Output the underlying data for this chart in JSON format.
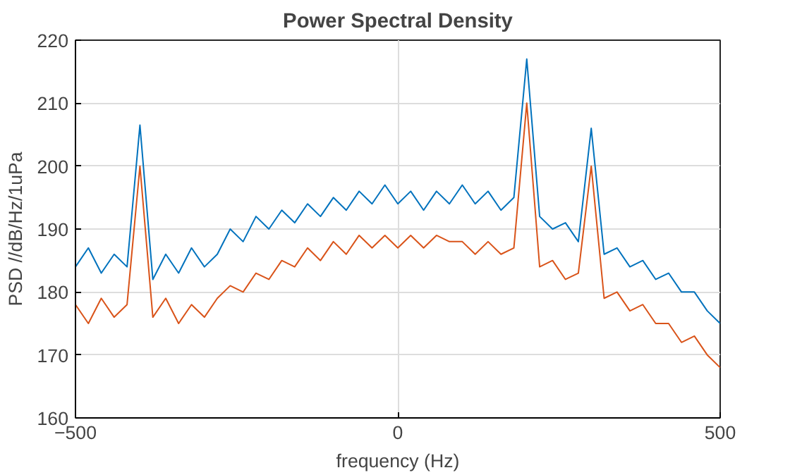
{
  "chart_data": {
    "type": "line",
    "title": "Power Spectral Density",
    "xlabel": "frequency (Hz)",
    "ylabel": "PSD //dB/Hz/1uPa",
    "x": [
      -500,
      -480,
      -460,
      -440,
      -420,
      -400,
      -380,
      -360,
      -340,
      -320,
      -300,
      -280,
      -260,
      -240,
      -220,
      -200,
      -180,
      -160,
      -140,
      -120,
      -100,
      -80,
      -60,
      -40,
      -20,
      0,
      20,
      40,
      60,
      80,
      100,
      120,
      140,
      160,
      180,
      200,
      220,
      240,
      260,
      280,
      300,
      320,
      340,
      360,
      380,
      400,
      420,
      440,
      460,
      480,
      500
    ],
    "series": [
      {
        "color": "#0072bd",
        "values": [
          184,
          187,
          183,
          186,
          184,
          206.5,
          182,
          186,
          183,
          187,
          184,
          186,
          190,
          188,
          192,
          190,
          193,
          191,
          194,
          192,
          195,
          193,
          196,
          194,
          197,
          194,
          196,
          193,
          196,
          194,
          197,
          194,
          196,
          193,
          195,
          217,
          192,
          190,
          191,
          188,
          206,
          186,
          187,
          184,
          185,
          182,
          183,
          180,
          180,
          177,
          175
        ]
      },
      {
        "color": "#d95319",
        "values": [
          178,
          175,
          179,
          176,
          178,
          200,
          176,
          179,
          175,
          178,
          176,
          179,
          181,
          180,
          183,
          182,
          185,
          184,
          187,
          185,
          188,
          186,
          189,
          187,
          189,
          187,
          189,
          187,
          189,
          188,
          188,
          186,
          188,
          186,
          187,
          210,
          184,
          185,
          182,
          183,
          200,
          179,
          180,
          177,
          178,
          175,
          175,
          172,
          173,
          170,
          168
        ]
      }
    ],
    "xlim": [
      -500,
      500
    ],
    "xticks": [
      -500,
      0,
      500
    ],
    "ylim": [
      160,
      220
    ],
    "yticks": [
      160,
      170,
      180,
      190,
      200,
      210,
      220
    ],
    "grid": true
  }
}
